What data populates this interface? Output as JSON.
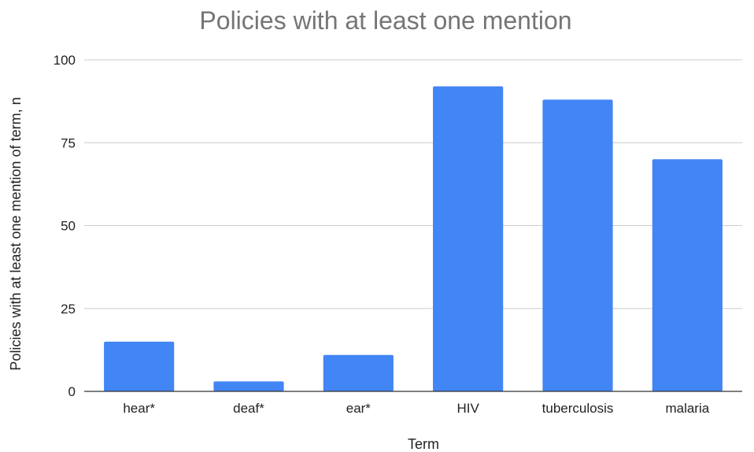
{
  "chart_data": {
    "type": "bar",
    "title": "Policies with at least one mention",
    "xlabel": "Term",
    "ylabel": "Policies with at least one mention of term, n",
    "categories": [
      "hear*",
      "deaf*",
      "ear*",
      "HIV",
      "tuberculosis",
      "malaria"
    ],
    "values": [
      15,
      3,
      11,
      92,
      88,
      70
    ],
    "ylim": [
      0,
      100
    ],
    "yticks": [
      "0",
      "25",
      "50",
      "75",
      "100"
    ],
    "grid": true,
    "legend": "none",
    "bar_color": "#4285F4"
  }
}
